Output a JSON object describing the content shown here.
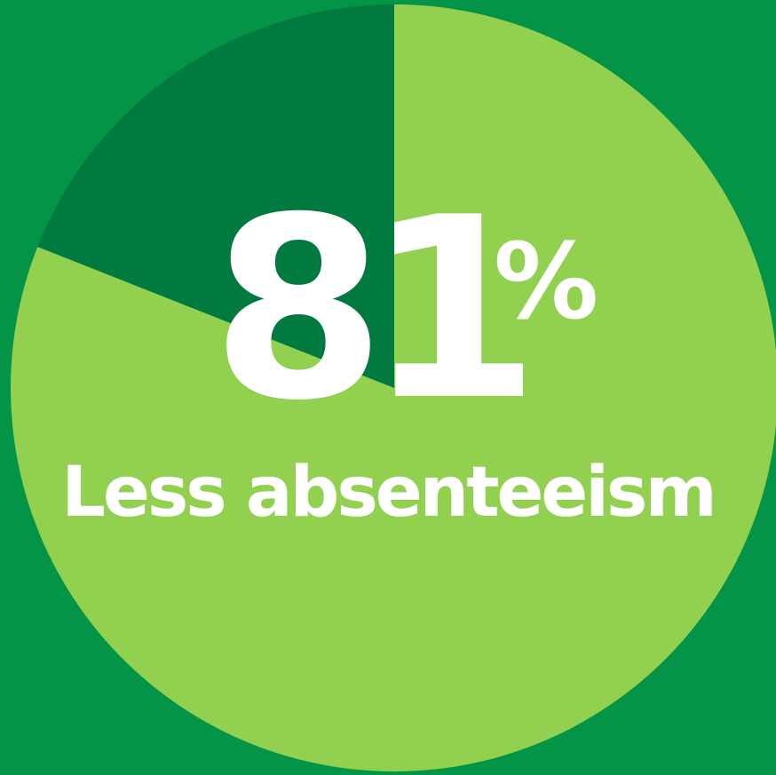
{
  "chart_data": {
    "type": "pie",
    "slices": [
      {
        "label": "Less absenteeism",
        "value": 81,
        "color": "#92d050"
      },
      {
        "label": "",
        "value": 19,
        "color": "#007a3f"
      }
    ],
    "background_color": "#049447",
    "legend": "none"
  },
  "headline": {
    "value": "81",
    "unit": "%",
    "caption": "Less absenteeism"
  }
}
